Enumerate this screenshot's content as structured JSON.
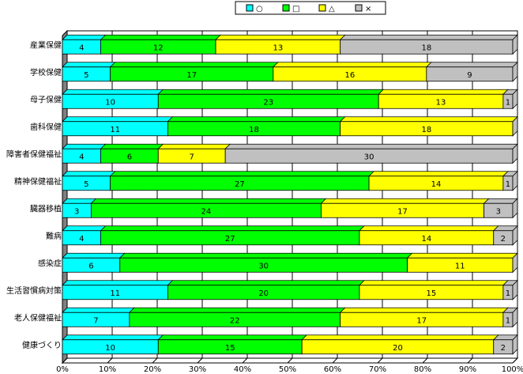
{
  "chart_data": {
    "type": "bar",
    "orientation": "horizontal",
    "stacked": "percent",
    "title": "",
    "xlabel": "",
    "ylabel": "",
    "xlim": [
      0,
      100
    ],
    "grid": true,
    "legend_position": "top-right",
    "x_ticks": [
      "0%",
      "10%",
      "20%",
      "30%",
      "40%",
      "50%",
      "60%",
      "70%",
      "80%",
      "90%",
      "100%"
    ],
    "categories": [
      "産業保健",
      "学校保健",
      "母子保健",
      "歯科保健",
      "障害者保健福祉",
      "精神保健福祉",
      "臓器移植",
      "難病",
      "感染症",
      "生活習慣病対策",
      "老人保健福祉",
      "健康づくり"
    ],
    "series": [
      {
        "name": "○",
        "color": "#00ffff",
        "values": [
          4,
          5,
          10,
          11,
          4,
          5,
          3,
          4,
          6,
          11,
          7,
          10
        ]
      },
      {
        "name": "□",
        "color": "#00ff00",
        "values": [
          12,
          17,
          23,
          18,
          6,
          27,
          24,
          27,
          30,
          20,
          22,
          15
        ]
      },
      {
        "name": "△",
        "color": "#ffff00",
        "values": [
          13,
          16,
          13,
          18,
          7,
          14,
          17,
          14,
          11,
          15,
          17,
          20
        ]
      },
      {
        "name": "×",
        "color": "#c0c0c0",
        "values": [
          18,
          9,
          1,
          0,
          30,
          1,
          3,
          2,
          0,
          1,
          1,
          2
        ]
      }
    ]
  }
}
